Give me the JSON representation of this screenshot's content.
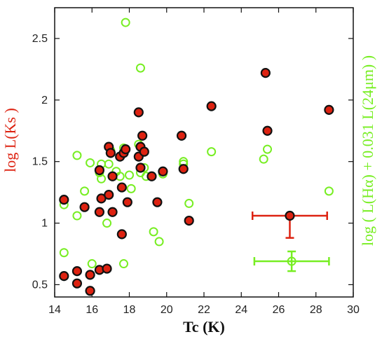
{
  "chart_data": {
    "type": "scatter",
    "xlabel": "Tc (K)",
    "ylabel": "log L(Ks )",
    "y2label": "log ( L(Hα) + 0.031 L(24μm) )",
    "xlim": [
      14,
      30
    ],
    "ylim": [
      0.4,
      2.75
    ],
    "x_ticks": [
      "14",
      "16",
      "18",
      "20",
      "22",
      "24",
      "26",
      "28",
      "30"
    ],
    "y_ticks": [
      "0.5",
      "1",
      "1.5",
      "2",
      "2.5"
    ],
    "grid": false,
    "colors": {
      "ks": "#dd2211",
      "ha": "#77ee22",
      "edge": "#111111"
    },
    "series": [
      {
        "x": [
          14.5,
          14.5,
          15.2,
          15.2,
          15.6,
          15.9,
          15.9,
          16.4,
          16.4,
          16.4,
          16.5,
          16.8,
          16.9,
          16.9,
          17.0,
          17.1,
          17.1,
          17.5,
          17.6,
          17.6,
          17.7,
          17.8,
          17.9,
          18.5,
          18.5,
          18.6,
          18.6,
          18.7,
          18.8,
          19.2,
          19.5,
          19.8,
          20.8,
          20.9,
          21.2,
          22.4,
          25.3,
          25.4,
          28.7
        ],
        "y": [
          0.57,
          1.19,
          0.61,
          0.51,
          1.13,
          0.45,
          0.58,
          0.62,
          1.09,
          1.43,
          1.2,
          0.63,
          1.23,
          1.62,
          1.57,
          1.38,
          1.09,
          1.54,
          0.91,
          1.29,
          1.57,
          1.6,
          1.17,
          1.9,
          1.54,
          1.45,
          1.62,
          1.71,
          1.58,
          1.38,
          1.17,
          1.42,
          1.71,
          1.44,
          1.02,
          1.95,
          2.22,
          1.75,
          1.92
        ]
      },
      {
        "x": [
          14.5,
          14.5,
          15.2,
          15.2,
          15.6,
          15.9,
          16.0,
          16.4,
          16.5,
          16.5,
          16.8,
          16.9,
          17.0,
          17.3,
          17.5,
          17.7,
          17.7,
          17.8,
          18.0,
          18.1,
          18.5,
          18.6,
          18.6,
          18.8,
          18.9,
          19.3,
          19.6,
          19.8,
          20.9,
          20.9,
          21.2,
          22.4,
          25.2,
          25.4,
          28.7
        ],
        "y": [
          1.15,
          0.76,
          1.55,
          1.06,
          1.26,
          1.49,
          0.67,
          1.41,
          1.48,
          1.36,
          1.0,
          1.48,
          1.59,
          1.42,
          1.38,
          1.61,
          0.67,
          2.63,
          1.39,
          1.28,
          1.64,
          1.41,
          2.26,
          1.45,
          1.38,
          0.93,
          0.85,
          1.4,
          1.5,
          1.48,
          1.16,
          1.58,
          1.52,
          1.6,
          1.26
        ]
      }
    ],
    "error_bars": [
      {
        "x": 26.6,
        "y": 1.06,
        "xerr": [
          2.0,
          2.0
        ],
        "yerr": [
          0.18,
          0.0
        ]
      },
      {
        "x": 26.7,
        "y": 0.69,
        "xerr": [
          2.0,
          2.0
        ],
        "yerr": [
          0.08,
          0.08
        ]
      }
    ]
  }
}
